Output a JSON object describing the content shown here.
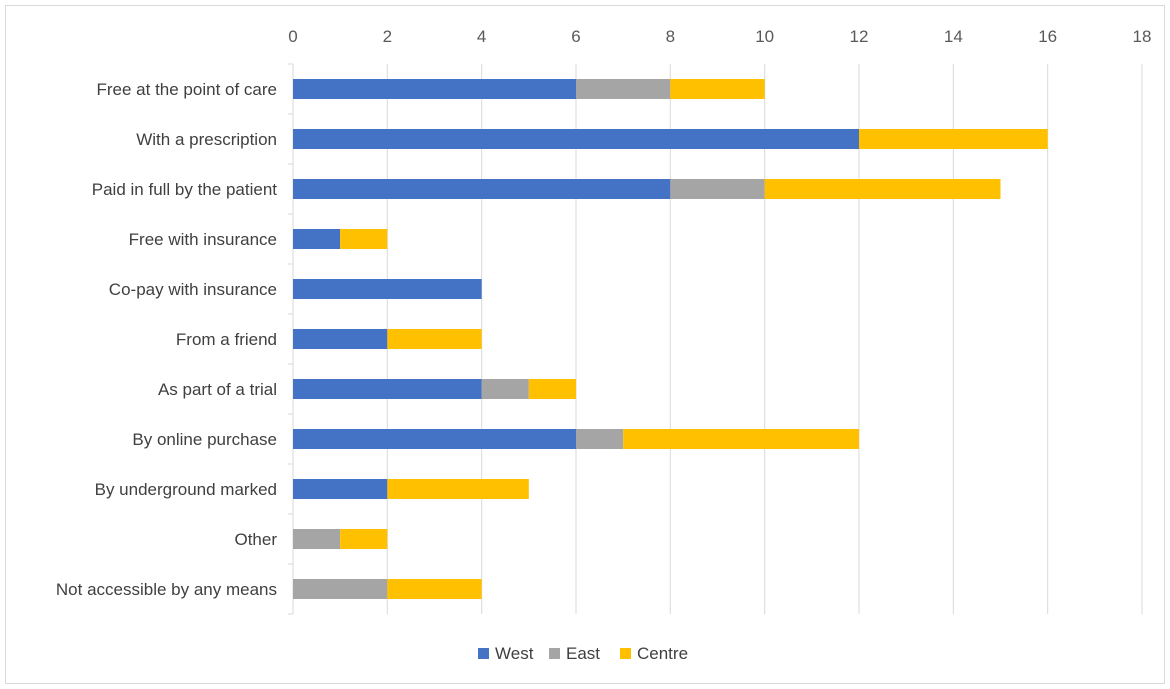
{
  "chart_data": {
    "type": "bar",
    "orientation": "horizontal",
    "stacked": true,
    "categories": [
      "Free at the point of care",
      "With a prescription",
      "Paid in full by the patient",
      "Free with insurance",
      "Co-pay with insurance",
      "From a friend",
      "As part of a trial",
      "By online purchase",
      "By underground marked",
      "Other",
      "Not accessible by any means"
    ],
    "series": [
      {
        "name": "West",
        "color": "#4472c4",
        "values": [
          6,
          12,
          8,
          1,
          4,
          2,
          4,
          6,
          2,
          0,
          0
        ]
      },
      {
        "name": "East",
        "color": "#a5a5a5",
        "values": [
          2,
          0,
          2,
          0,
          0,
          0,
          1,
          1,
          0,
          1,
          2
        ]
      },
      {
        "name": "Centre",
        "color": "#ffc000",
        "values": [
          2,
          4,
          5,
          1,
          0,
          2,
          1,
          5,
          3,
          1,
          2
        ]
      }
    ],
    "xlim": [
      0,
      18
    ],
    "xticks": [
      0,
      2,
      4,
      6,
      8,
      10,
      12,
      14,
      16,
      18
    ],
    "x_axis_position": "top",
    "grid": true,
    "legend_position": "bottom"
  }
}
